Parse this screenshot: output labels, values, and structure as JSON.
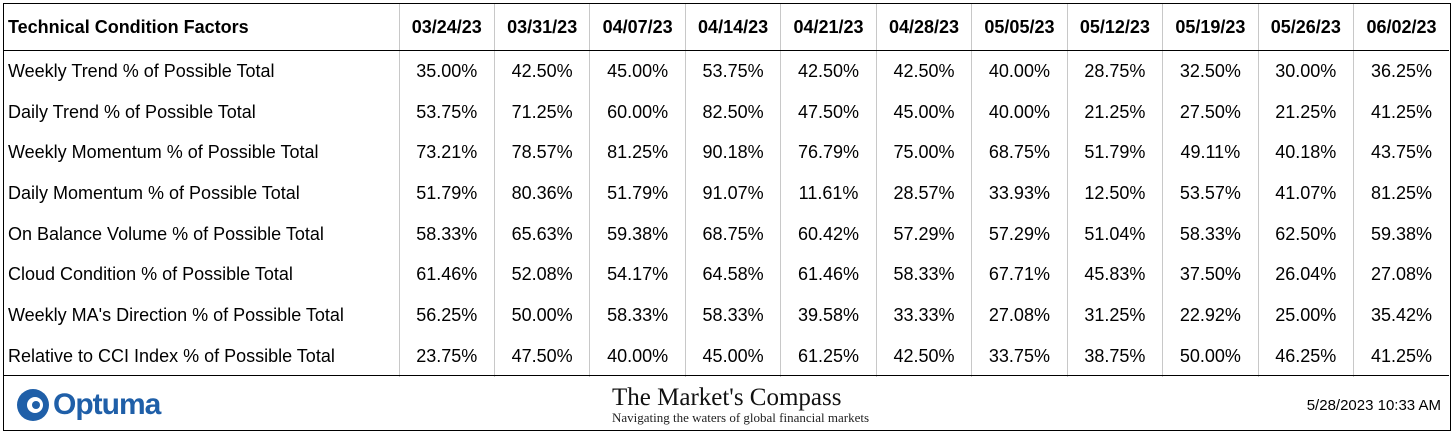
{
  "table": {
    "header": [
      "Technical Condition Factors",
      "03/24/23",
      "03/31/23",
      "04/07/23",
      "04/14/23",
      "04/21/23",
      "04/28/23",
      "05/05/23",
      "05/12/23",
      "05/19/23",
      "05/26/23",
      "06/02/23"
    ],
    "rows": [
      [
        "Weekly Trend % of Possible Total",
        "35.00%",
        "42.50%",
        "45.00%",
        "53.75%",
        "42.50%",
        "42.50%",
        "40.00%",
        "28.75%",
        "32.50%",
        "30.00%",
        "36.25%"
      ],
      [
        "Daily Trend % of Possible Total",
        "53.75%",
        "71.25%",
        "60.00%",
        "82.50%",
        "47.50%",
        "45.00%",
        "40.00%",
        "21.25%",
        "27.50%",
        "21.25%",
        "41.25%"
      ],
      [
        "Weekly Momentum % of Possible Total",
        "73.21%",
        "78.57%",
        "81.25%",
        "90.18%",
        "76.79%",
        "75.00%",
        "68.75%",
        "51.79%",
        "49.11%",
        "40.18%",
        "43.75%"
      ],
      [
        "Daily Momentum % of Possible Total",
        "51.79%",
        "80.36%",
        "51.79%",
        "91.07%",
        "11.61%",
        "28.57%",
        "33.93%",
        "12.50%",
        "53.57%",
        "41.07%",
        "81.25%"
      ],
      [
        "On Balance Volume % of Possible Total",
        "58.33%",
        "65.63%",
        "59.38%",
        "68.75%",
        "60.42%",
        "57.29%",
        "57.29%",
        "51.04%",
        "58.33%",
        "62.50%",
        "59.38%"
      ],
      [
        "Cloud Condition % of Possible Total",
        "61.46%",
        "52.08%",
        "54.17%",
        "64.58%",
        "61.46%",
        "58.33%",
        "67.71%",
        "45.83%",
        "37.50%",
        "26.04%",
        "27.08%"
      ],
      [
        "Weekly MA's Direction % of Possible Total",
        "56.25%",
        "50.00%",
        "58.33%",
        "58.33%",
        "39.58%",
        "33.33%",
        "27.08%",
        "31.25%",
        "22.92%",
        "25.00%",
        "35.42%"
      ],
      [
        "Relative to CCI Index % of Possible Total",
        "23.75%",
        "47.50%",
        "40.00%",
        "45.00%",
        "61.25%",
        "42.50%",
        "33.75%",
        "38.75%",
        "50.00%",
        "46.25%",
        "41.25%"
      ]
    ]
  },
  "footer": {
    "logo": "Optuma",
    "brand_title": "The Market's Compass",
    "brand_subtitle": "Navigating the waters of global financial markets",
    "timestamp": "5/28/2023 10:33 AM"
  }
}
